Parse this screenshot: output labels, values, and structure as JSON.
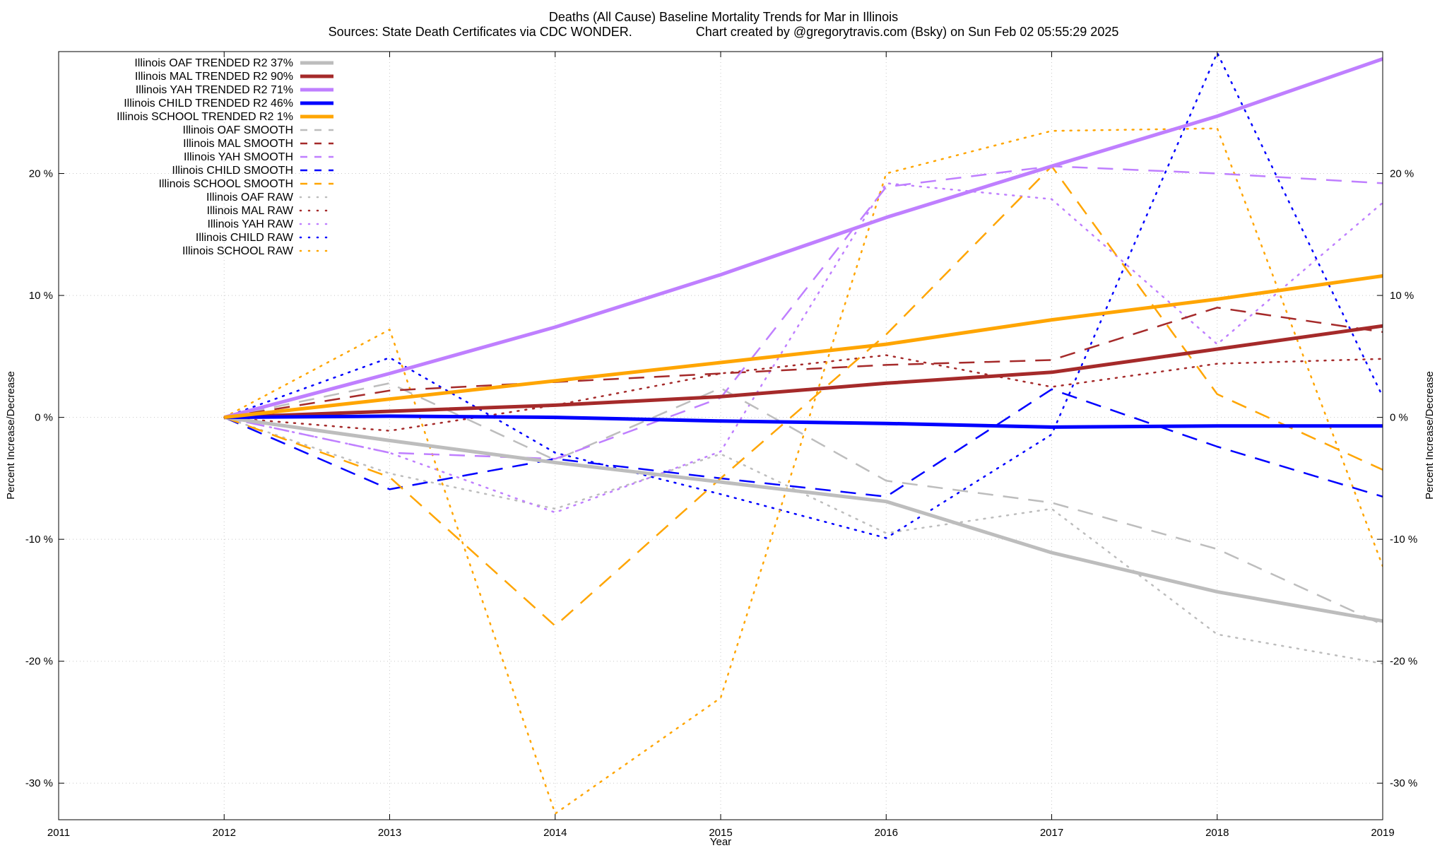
{
  "chart_data": {
    "type": "line",
    "title": "Deaths (All Cause)  Baseline Mortality Trends for Mar in Illinois",
    "subtitle_left": "Sources: State Death Certificates via CDC WONDER.",
    "subtitle_right": "Chart created by @gregorytravis.com (Bsky) on Sun Feb 02 05:55:29 2025",
    "xlabel": "Year",
    "ylabel_left": "Percent Increase/Decrease",
    "ylabel_right": "Percent Increase/Decrease",
    "xlim": [
      2011,
      2019
    ],
    "ylim": [
      -33,
      30
    ],
    "xticks": [
      2011,
      2012,
      2013,
      2014,
      2015,
      2016,
      2017,
      2018,
      2019
    ],
    "xtick_labels": [
      "2011",
      "2012",
      "2013",
      "2014",
      "2015",
      "2016",
      "2017",
      "2018",
      "2019"
    ],
    "yticks": [
      -30,
      -20,
      -10,
      0,
      10,
      20
    ],
    "ytick_labels": [
      "-30 %",
      "-20 %",
      "-10 %",
      "0 %",
      "10 %",
      "20 %"
    ],
    "grid": true,
    "legend_position": "top-left",
    "x": [
      2012,
      2013,
      2014,
      2015,
      2016,
      2017,
      2018,
      2019
    ],
    "series": [
      {
        "name": "Illinois OAF TRENDED R2  37%",
        "color": "#bdbdbd",
        "style": "solid",
        "values": [
          0,
          -1.9,
          -3.7,
          -5.3,
          -6.9,
          -11.1,
          -14.3,
          -16.7
        ]
      },
      {
        "name": "Illinois MAL TRENDED R2  90%",
        "color": "#a52a2a",
        "style": "solid",
        "values": [
          0,
          0.5,
          1.0,
          1.7,
          2.8,
          3.7,
          5.6,
          7.5
        ]
      },
      {
        "name": "Illinois YAH TRENDED R2  71%",
        "color": "#bf7fff",
        "style": "solid",
        "values": [
          0,
          3.6,
          7.4,
          11.7,
          16.4,
          20.6,
          24.7,
          29.4
        ]
      },
      {
        "name": "Illinois CHILD TRENDED R2  46%",
        "color": "#0000ff",
        "style": "solid",
        "values": [
          0,
          0.1,
          0.0,
          -0.3,
          -0.5,
          -0.8,
          -0.7,
          -0.7
        ]
      },
      {
        "name": "Illinois SCHOOL TRENDED R2   1%",
        "color": "#ffa500",
        "style": "solid",
        "values": [
          0,
          1.5,
          3.0,
          4.5,
          6.0,
          8.0,
          9.7,
          11.6
        ]
      },
      {
        "name": "Illinois OAF SMOOTH",
        "color": "#bdbdbd",
        "style": "dashed",
        "values": [
          0,
          2.8,
          -3.5,
          2.4,
          -5.2,
          -7.0,
          -10.8,
          -17.0
        ]
      },
      {
        "name": "Illinois MAL SMOOTH",
        "color": "#a52a2a",
        "style": "dashed",
        "values": [
          0,
          2.2,
          2.9,
          3.6,
          4.3,
          4.7,
          9.0,
          7.0
        ]
      },
      {
        "name": "Illinois YAH SMOOTH",
        "color": "#bf7fff",
        "style": "dashed",
        "values": [
          0,
          -2.9,
          -3.4,
          1.6,
          18.9,
          20.6,
          20.0,
          19.2
        ]
      },
      {
        "name": "Illinois CHILD SMOOTH",
        "color": "#0000ff",
        "style": "dashed",
        "values": [
          0,
          -5.9,
          -3.4,
          -5.0,
          -6.5,
          2.3,
          -2.4,
          -6.5
        ]
      },
      {
        "name": "Illinois SCHOOL SMOOTH",
        "color": "#ffa500",
        "style": "dashed",
        "values": [
          0,
          -4.9,
          -17.1,
          -5.0,
          6.8,
          20.6,
          1.9,
          -4.3
        ]
      },
      {
        "name": "Illinois OAF RAW",
        "color": "#bdbdbd",
        "style": "dotted",
        "values": [
          0,
          -4.6,
          -7.5,
          -3.0,
          -9.5,
          -7.5,
          -17.8,
          -20.2
        ]
      },
      {
        "name": "Illinois MAL RAW",
        "color": "#a52a2a",
        "style": "dotted",
        "values": [
          0,
          -1.1,
          1.0,
          3.6,
          5.1,
          2.5,
          4.4,
          4.8
        ]
      },
      {
        "name": "Illinois YAH RAW",
        "color": "#bf7fff",
        "style": "dotted",
        "values": [
          0,
          -2.9,
          -7.8,
          -2.8,
          19.2,
          17.9,
          6.0,
          17.6
        ]
      },
      {
        "name": "Illinois CHILD RAW",
        "color": "#0000ff",
        "style": "dotted",
        "values": [
          0,
          4.9,
          -2.9,
          -6.3,
          -9.9,
          -1.4,
          29.9,
          1.7
        ]
      },
      {
        "name": "Illinois SCHOOL RAW",
        "color": "#ffa500",
        "style": "dotted",
        "values": [
          0,
          7.2,
          -32.5,
          -23.0,
          20.0,
          23.5,
          23.7,
          -12.2
        ]
      }
    ]
  }
}
